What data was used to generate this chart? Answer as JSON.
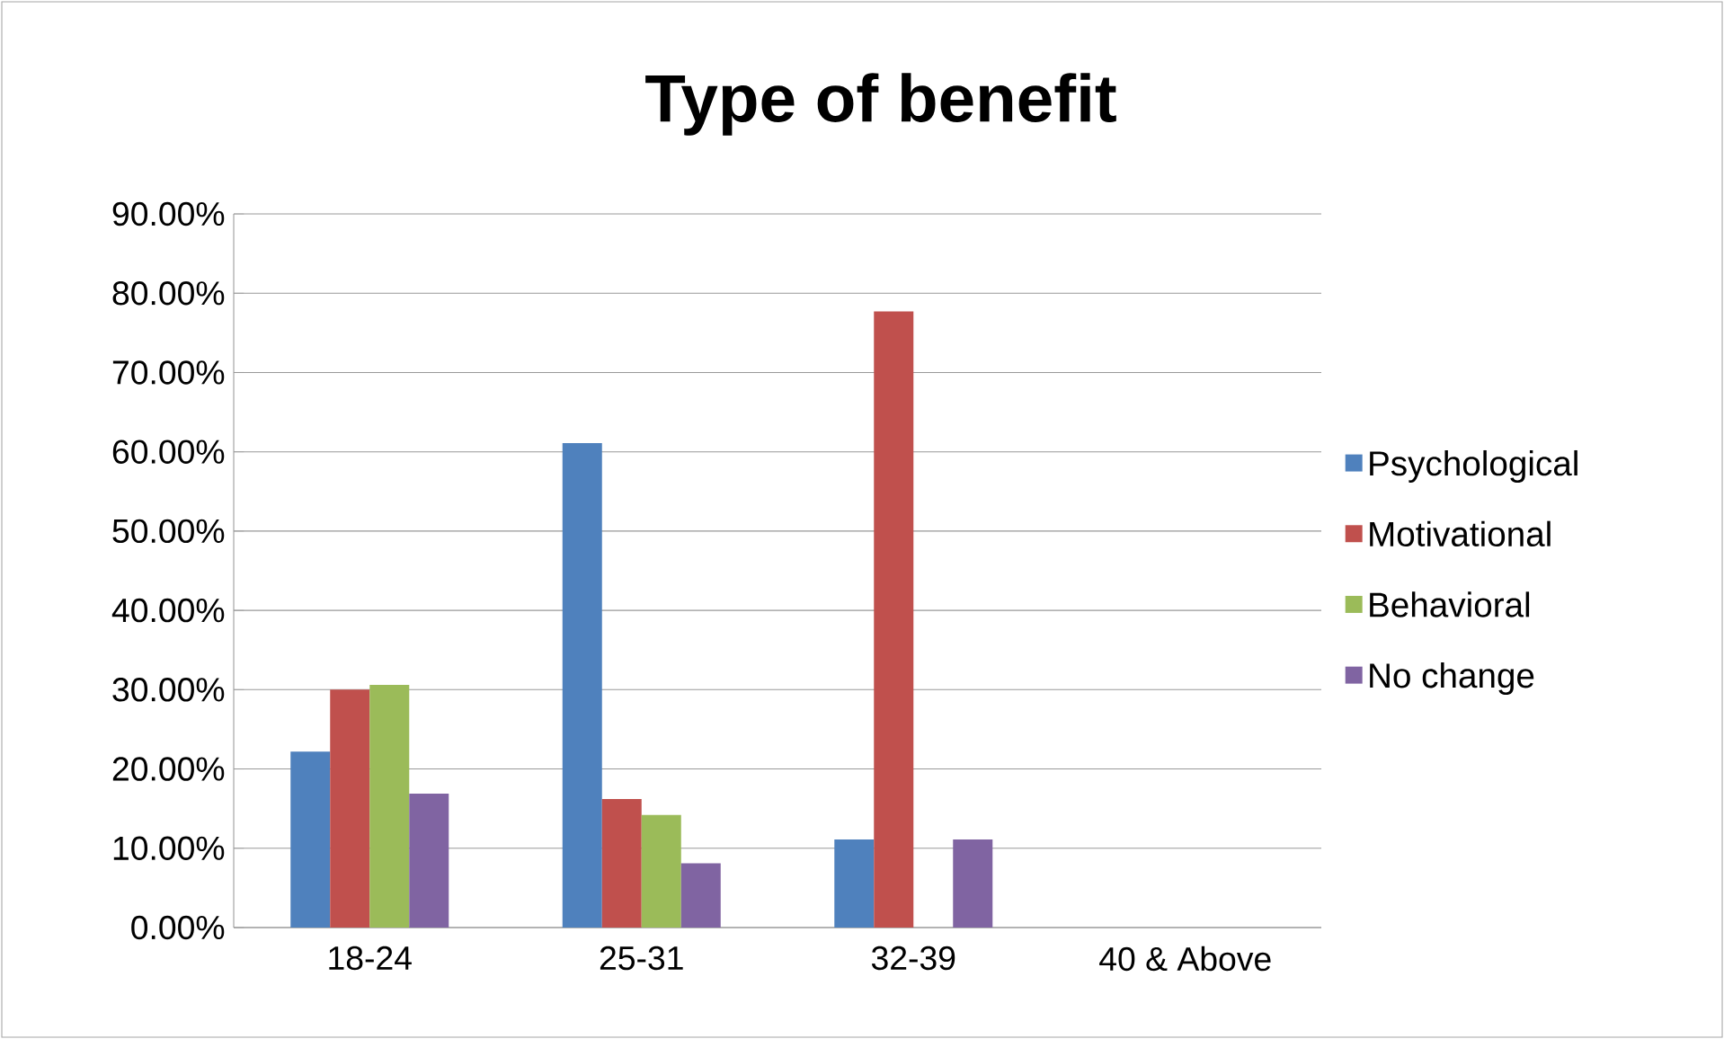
{
  "chart_data": {
    "type": "bar",
    "title": "Type of benefit",
    "categories": [
      "18-24",
      "25-31",
      "32-39",
      "40 & Above"
    ],
    "series": [
      {
        "name": "Psychological",
        "color": "#4f81bd",
        "values": [
          22.2,
          61.1,
          11.1,
          0
        ]
      },
      {
        "name": "Motivational",
        "color": "#c0504d",
        "values": [
          30.0,
          16.2,
          77.7,
          0
        ]
      },
      {
        "name": "Behavioral",
        "color": "#9bbb59",
        "values": [
          30.6,
          14.2,
          0,
          0
        ]
      },
      {
        "name": "No change",
        "color": "#8064a2",
        "values": [
          16.9,
          8.1,
          11.1,
          0
        ]
      }
    ],
    "ylim": [
      0,
      90
    ],
    "yticks": [
      {
        "value": 0,
        "label": "0.00%"
      },
      {
        "value": 10,
        "label": "10.00%"
      },
      {
        "value": 20,
        "label": "20.00%"
      },
      {
        "value": 30,
        "label": "30.00%"
      },
      {
        "value": 40,
        "label": "40.00%"
      },
      {
        "value": 50,
        "label": "50.00%"
      },
      {
        "value": 60,
        "label": "60.00%"
      },
      {
        "value": 70,
        "label": "70.00%"
      },
      {
        "value": 80,
        "label": "80.00%"
      },
      {
        "value": 90,
        "label": "90.00%"
      }
    ],
    "grid": "y",
    "legend": "right"
  }
}
